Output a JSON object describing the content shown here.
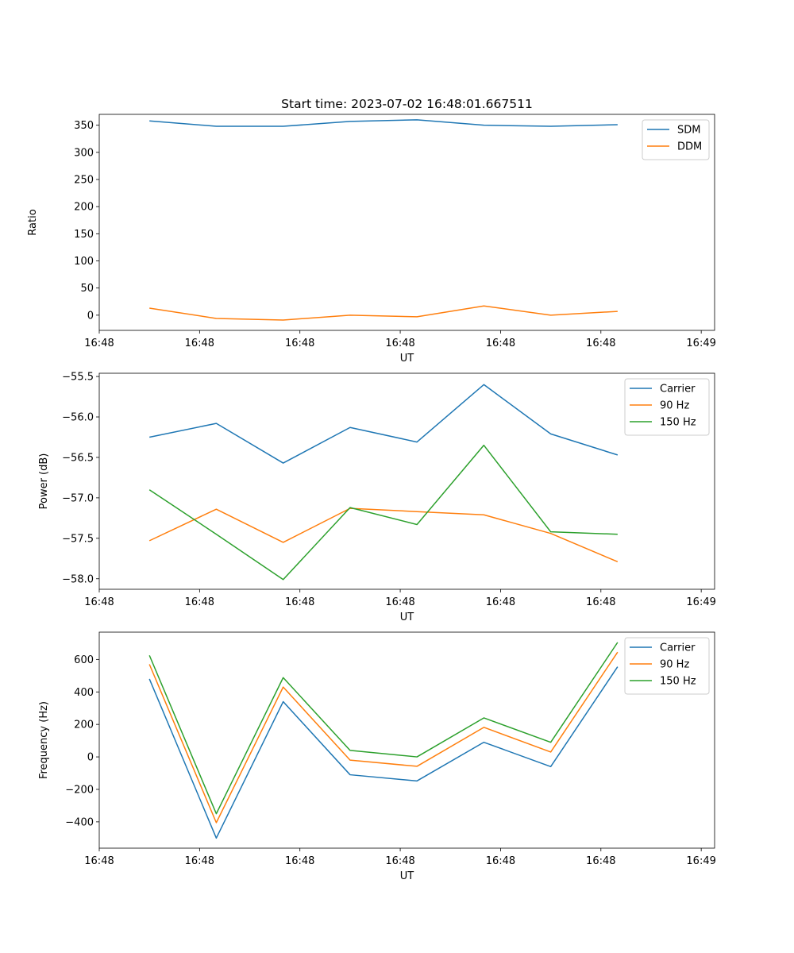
{
  "chart_data": [
    {
      "type": "line",
      "title": "Start time: 2023-07-02 16:48:01.667511",
      "xlabel": "UT",
      "ylabel": "Ratio",
      "x": [
        0,
        1,
        2,
        3,
        4,
        5,
        6,
        7
      ],
      "xlim": [
        -0.75,
        8.45
      ],
      "xticks": [
        -0.75,
        0.75,
        2.25,
        3.75,
        5.25,
        6.75,
        8.25
      ],
      "xtick_labels": [
        "16:48",
        "16:48",
        "16:48",
        "16:48",
        "16:48",
        "16:48",
        "16:49"
      ],
      "ylim": [
        -28,
        370
      ],
      "yticks": [
        0,
        50,
        100,
        150,
        200,
        250,
        300,
        350
      ],
      "legend": "top-right",
      "series": [
        {
          "name": "SDM",
          "color": "#1f77b4",
          "values": [
            358,
            348,
            348,
            357,
            360,
            350,
            348,
            351
          ]
        },
        {
          "name": "DDM",
          "color": "#ff7f0e",
          "values": [
            13,
            -6,
            -9,
            0,
            -3,
            17,
            0,
            7
          ]
        }
      ]
    },
    {
      "type": "line",
      "title": "",
      "xlabel": "UT",
      "ylabel": "Power (dB)",
      "x": [
        0,
        1,
        2,
        3,
        4,
        5,
        6,
        7
      ],
      "xlim": [
        -0.75,
        8.45
      ],
      "xticks": [
        -0.75,
        0.75,
        2.25,
        3.75,
        5.25,
        6.75,
        8.25
      ],
      "xtick_labels": [
        "16:48",
        "16:48",
        "16:48",
        "16:48",
        "16:48",
        "16:48",
        "16:49"
      ],
      "ylim": [
        -58.13,
        -55.46
      ],
      "yticks": [
        -58.0,
        -57.5,
        -57.0,
        -56.5,
        -56.0,
        -55.5
      ],
      "legend": "top-right",
      "series": [
        {
          "name": "Carrier",
          "color": "#1f77b4",
          "values": [
            -56.25,
            -56.08,
            -56.57,
            -56.13,
            -56.31,
            -55.6,
            -56.21,
            -56.47
          ]
        },
        {
          "name": "90 Hz",
          "color": "#ff7f0e",
          "values": [
            -57.53,
            -57.14,
            -57.55,
            -57.13,
            -57.17,
            -57.21,
            -57.44,
            -57.79
          ]
        },
        {
          "name": "150 Hz",
          "color": "#2ca02c",
          "values": [
            -56.9,
            -57.45,
            -58.01,
            -57.12,
            -57.33,
            -56.35,
            -57.42,
            -57.45
          ]
        }
      ]
    },
    {
      "type": "line",
      "title": "",
      "xlabel": "UT",
      "ylabel": "Frequency (Hz)",
      "x": [
        0,
        1,
        2,
        3,
        4,
        5,
        6,
        7
      ],
      "xlim": [
        -0.75,
        8.45
      ],
      "xticks": [
        -0.75,
        0.75,
        2.25,
        3.75,
        5.25,
        6.75,
        8.25
      ],
      "xtick_labels": [
        "16:48",
        "16:48",
        "16:48",
        "16:48",
        "16:48",
        "16:48",
        "16:49"
      ],
      "ylim": [
        -562,
        768
      ],
      "yticks": [
        -400,
        -200,
        0,
        200,
        400,
        600
      ],
      "legend": "top-right",
      "series": [
        {
          "name": "Carrier",
          "color": "#1f77b4",
          "values": [
            480,
            -500,
            340,
            -110,
            -148,
            90,
            -60,
            555
          ]
        },
        {
          "name": "90 Hz",
          "color": "#ff7f0e",
          "values": [
            570,
            -405,
            430,
            -20,
            -58,
            182,
            30,
            645
          ]
        },
        {
          "name": "150 Hz",
          "color": "#2ca02c",
          "values": [
            625,
            -350,
            488,
            40,
            0,
            240,
            90,
            705
          ]
        }
      ]
    }
  ]
}
